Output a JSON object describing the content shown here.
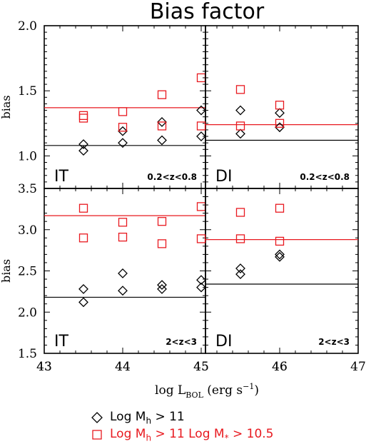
{
  "title": "Bias factor",
  "xlabel_main": "log L",
  "xlabel_sub": "BOL",
  "xlabel_tail": " (erg s",
  "xlabel_sup": "−1",
  "xlabel_close": ")",
  "ylabel": "bias",
  "legend": {
    "black": {
      "pre": "Log M",
      "sub": "h",
      "post": " > 11",
      "color": "#000000"
    },
    "red": {
      "pre": "Log M",
      "sub": "h",
      "mid": " > 11 Log M",
      "sub2": "*",
      "post": " > 10.5",
      "color": "#e8191f"
    }
  },
  "chart_data": [
    {
      "type": "scatter",
      "panel": "top-left",
      "model": "IT",
      "zrange": "0.2<z<0.8",
      "ylabel": "bias",
      "ylim": [
        0.75,
        2.0
      ],
      "yticks": [
        "2.0",
        "1.5",
        "1.0"
      ],
      "xlim": [
        43,
        47
      ],
      "series": [
        {
          "name": "Log Mh > 11",
          "marker": "diamond",
          "color": "#000000",
          "x": [
            43.5,
            44.0,
            44.5,
            45.0,
            45.5,
            46.0
          ],
          "y": [
            1.04,
            1.19,
            1.26,
            1.35,
            1.35,
            1.33
          ],
          "hline": 1.08
        },
        {
          "name": "Log Mh > 11 Log M* > 10.5",
          "marker": "square",
          "color": "#e8191f",
          "x": [
            43.5,
            44.0,
            44.5,
            45.0,
            45.5,
            46.0
          ],
          "y": [
            1.31,
            1.34,
            1.47,
            1.6,
            1.51,
            1.39
          ],
          "hline": 1.37
        }
      ]
    },
    {
      "type": "scatter",
      "panel": "top-right",
      "model": "DI",
      "zrange": "0.2<z<0.8",
      "ylim": [
        0.75,
        2.0
      ],
      "xlim": [
        43,
        47
      ],
      "series": [
        {
          "name": "Log Mh > 11",
          "marker": "diamond",
          "color": "#000000",
          "x": [
            43.5,
            44.0,
            44.5,
            45.0,
            45.5,
            46.0
          ],
          "y": [
            1.09,
            1.1,
            1.12,
            1.15,
            1.17,
            1.22
          ],
          "hline": 1.12
        },
        {
          "name": "Log Mh > 11 Log M* > 10.5",
          "marker": "square",
          "color": "#e8191f",
          "x": [
            43.5,
            44.0,
            44.5,
            45.0,
            45.5,
            46.0
          ],
          "y": [
            1.29,
            1.22,
            1.23,
            1.23,
            1.23,
            1.25
          ],
          "hline": 1.24
        }
      ]
    },
    {
      "type": "scatter",
      "panel": "bottom-left",
      "model": "IT",
      "zrange": "2<z<3",
      "ylabel": "bias",
      "ylim": [
        1.5,
        3.5
      ],
      "yticks": [
        "3.5",
        "3.0",
        "2.5",
        "2.0",
        "1.5"
      ],
      "xlim": [
        43,
        47
      ],
      "xticks": [
        "43",
        "44",
        "45",
        "46"
      ],
      "series": [
        {
          "name": "Log Mh > 11",
          "marker": "diamond",
          "color": "#000000",
          "x": [
            43.5,
            44.0,
            44.5,
            45.0,
            45.5,
            46.0
          ],
          "y": [
            2.12,
            2.47,
            2.33,
            2.3,
            2.46,
            2.67
          ],
          "hline": 2.18
        },
        {
          "name": "Log Mh > 11 Log M* > 10.5",
          "marker": "square",
          "color": "#e8191f",
          "x": [
            43.5,
            44.0,
            44.5,
            45.0,
            45.5,
            46.0
          ],
          "y": [
            3.26,
            3.09,
            3.1,
            3.28,
            3.21,
            3.26
          ],
          "hline": 3.17
        }
      ]
    },
    {
      "type": "scatter",
      "panel": "bottom-right",
      "model": "DI",
      "zrange": "2<z<3",
      "ylim": [
        1.5,
        3.5
      ],
      "xlim": [
        43,
        47
      ],
      "xticks": [
        "43",
        "44",
        "45",
        "46",
        "47"
      ],
      "series": [
        {
          "name": "Log Mh > 11",
          "marker": "diamond",
          "color": "#000000",
          "x": [
            43.5,
            44.0,
            44.5,
            45.0,
            45.5,
            46.0
          ],
          "y": [
            2.28,
            2.26,
            2.28,
            2.39,
            2.53,
            2.7
          ],
          "hline": 2.34
        },
        {
          "name": "Log Mh > 11 Log M* > 10.5",
          "marker": "square",
          "color": "#e8191f",
          "x": [
            43.5,
            44.0,
            44.5,
            45.0,
            45.5,
            46.0
          ],
          "y": [
            2.9,
            2.91,
            2.83,
            2.89,
            2.89,
            2.86
          ],
          "hline": 2.88
        }
      ]
    }
  ]
}
